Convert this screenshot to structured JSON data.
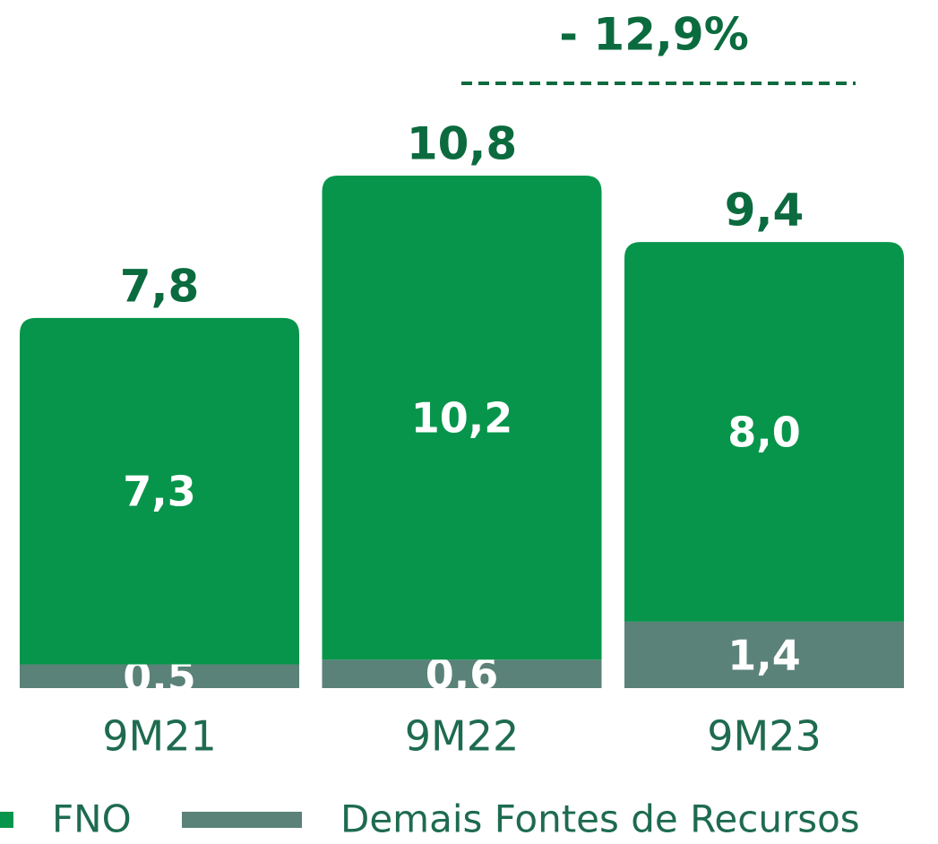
{
  "chart_data": {
    "type": "stacked_bar",
    "annotation": "- 12,9%",
    "categories": [
      "9M21",
      "9M22",
      "9M23"
    ],
    "series": [
      {
        "name": "FNO",
        "color": "#07954b",
        "values": [
          7.3,
          10.2,
          8.0
        ],
        "value_labels": [
          "7,3",
          "10,2",
          "8,0"
        ]
      },
      {
        "name": "Demais Fontes de Recursos",
        "color": "#5a8278",
        "values": [
          0.5,
          0.6,
          1.4
        ],
        "value_labels": [
          "0,5",
          "0,6",
          "1,4"
        ]
      }
    ],
    "totals": [
      7.8,
      10.8,
      9.4
    ],
    "total_labels": [
      "7,8",
      "10,8",
      "9,4"
    ]
  }
}
